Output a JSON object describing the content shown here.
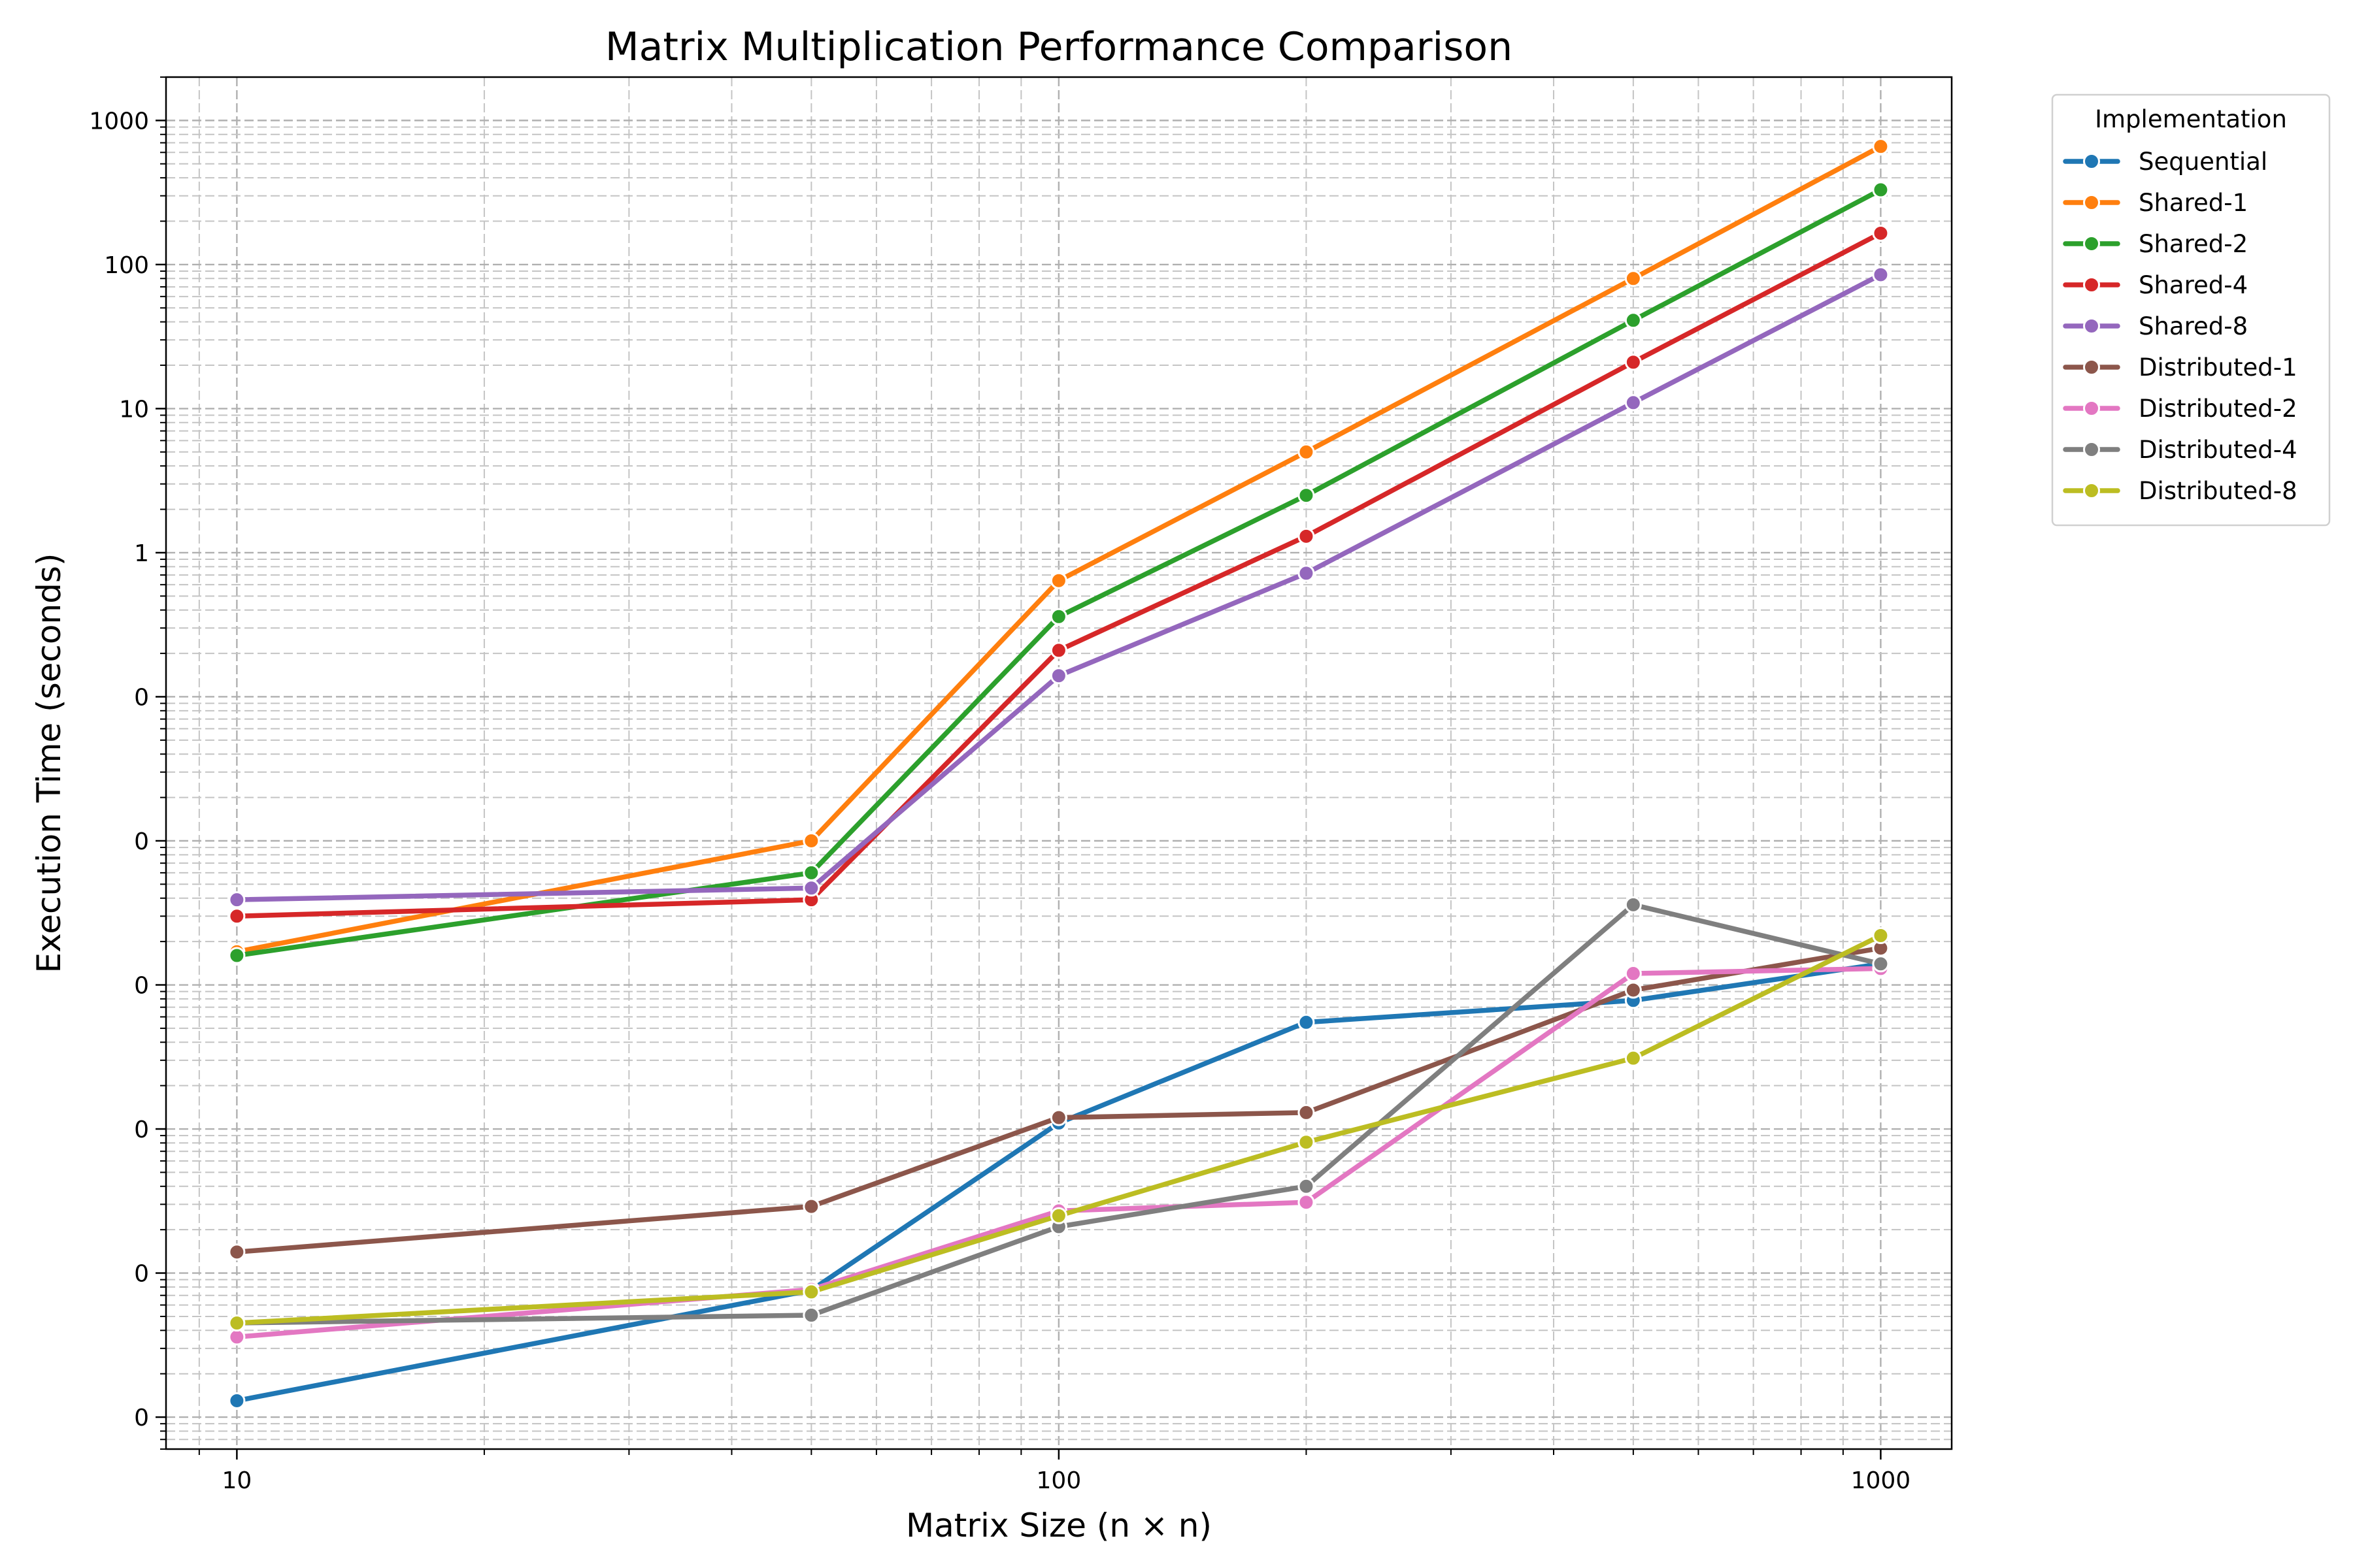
{
  "chart_data": {
    "type": "line",
    "title": "Matrix Multiplication Performance Comparison",
    "xlabel": "Matrix Size (n × n)",
    "ylabel": "Execution Time (seconds)",
    "xscale": "log",
    "yscale": "log",
    "xlim": [
      8.2,
      1220
    ],
    "ylim": [
      6e-07,
      2000
    ],
    "x_ticks": [
      {
        "value": 10,
        "label": "10"
      },
      {
        "value": 100,
        "label": "100"
      },
      {
        "value": 1000,
        "label": "1000"
      }
    ],
    "y_ticks": [
      {
        "value": 1e-06,
        "label": "0"
      },
      {
        "value": 1e-05,
        "label": "0"
      },
      {
        "value": 0.0001,
        "label": "0"
      },
      {
        "value": 0.001,
        "label": "0"
      },
      {
        "value": 0.01,
        "label": "0"
      },
      {
        "value": 0.1,
        "label": "0"
      },
      {
        "value": 1,
        "label": "1"
      },
      {
        "value": 10,
        "label": "10"
      },
      {
        "value": 100,
        "label": "100"
      },
      {
        "value": 1000,
        "label": "1000"
      }
    ],
    "grid": true,
    "legend": {
      "title": "Implementation",
      "position": "outside top-right"
    },
    "x": [
      10,
      50,
      100,
      200,
      500,
      1000
    ],
    "series": [
      {
        "name": "Sequential",
        "color": "#1f77b4",
        "values": [
          1.3e-06,
          7.6e-06,
          0.00011,
          0.00055,
          0.00078,
          0.0014
        ]
      },
      {
        "name": "Shared-1",
        "color": "#ff7f0e",
        "values": [
          0.0017,
          0.01,
          0.64,
          5,
          80,
          660
        ]
      },
      {
        "name": "Shared-2",
        "color": "#2ca02c",
        "values": [
          0.0016,
          0.006,
          0.36,
          2.5,
          41,
          330
        ]
      },
      {
        "name": "Shared-4",
        "color": "#d62728",
        "values": [
          0.003,
          0.0039,
          0.21,
          1.3,
          21,
          165
        ]
      },
      {
        "name": "Shared-8",
        "color": "#9467bd",
        "values": [
          0.0039,
          0.0047,
          0.14,
          0.72,
          11,
          85
        ]
      },
      {
        "name": "Distributed-1",
        "color": "#8c564b",
        "values": [
          1.4e-05,
          2.9e-05,
          0.00012,
          0.00013,
          0.00092,
          0.0018
        ]
      },
      {
        "name": "Distributed-2",
        "color": "#e377c2",
        "values": [
          3.6e-06,
          7.7e-06,
          2.7e-05,
          3.1e-05,
          0.0012,
          0.0013
        ]
      },
      {
        "name": "Distributed-4",
        "color": "#7f7f7f",
        "values": [
          4.5e-06,
          5.1e-06,
          2.1e-05,
          4e-05,
          0.0036,
          0.0014
        ]
      },
      {
        "name": "Distributed-8",
        "color": "#bcbd22",
        "values": [
          4.5e-06,
          7.4e-06,
          2.5e-05,
          8.1e-05,
          0.00031,
          0.0022
        ]
      }
    ]
  }
}
